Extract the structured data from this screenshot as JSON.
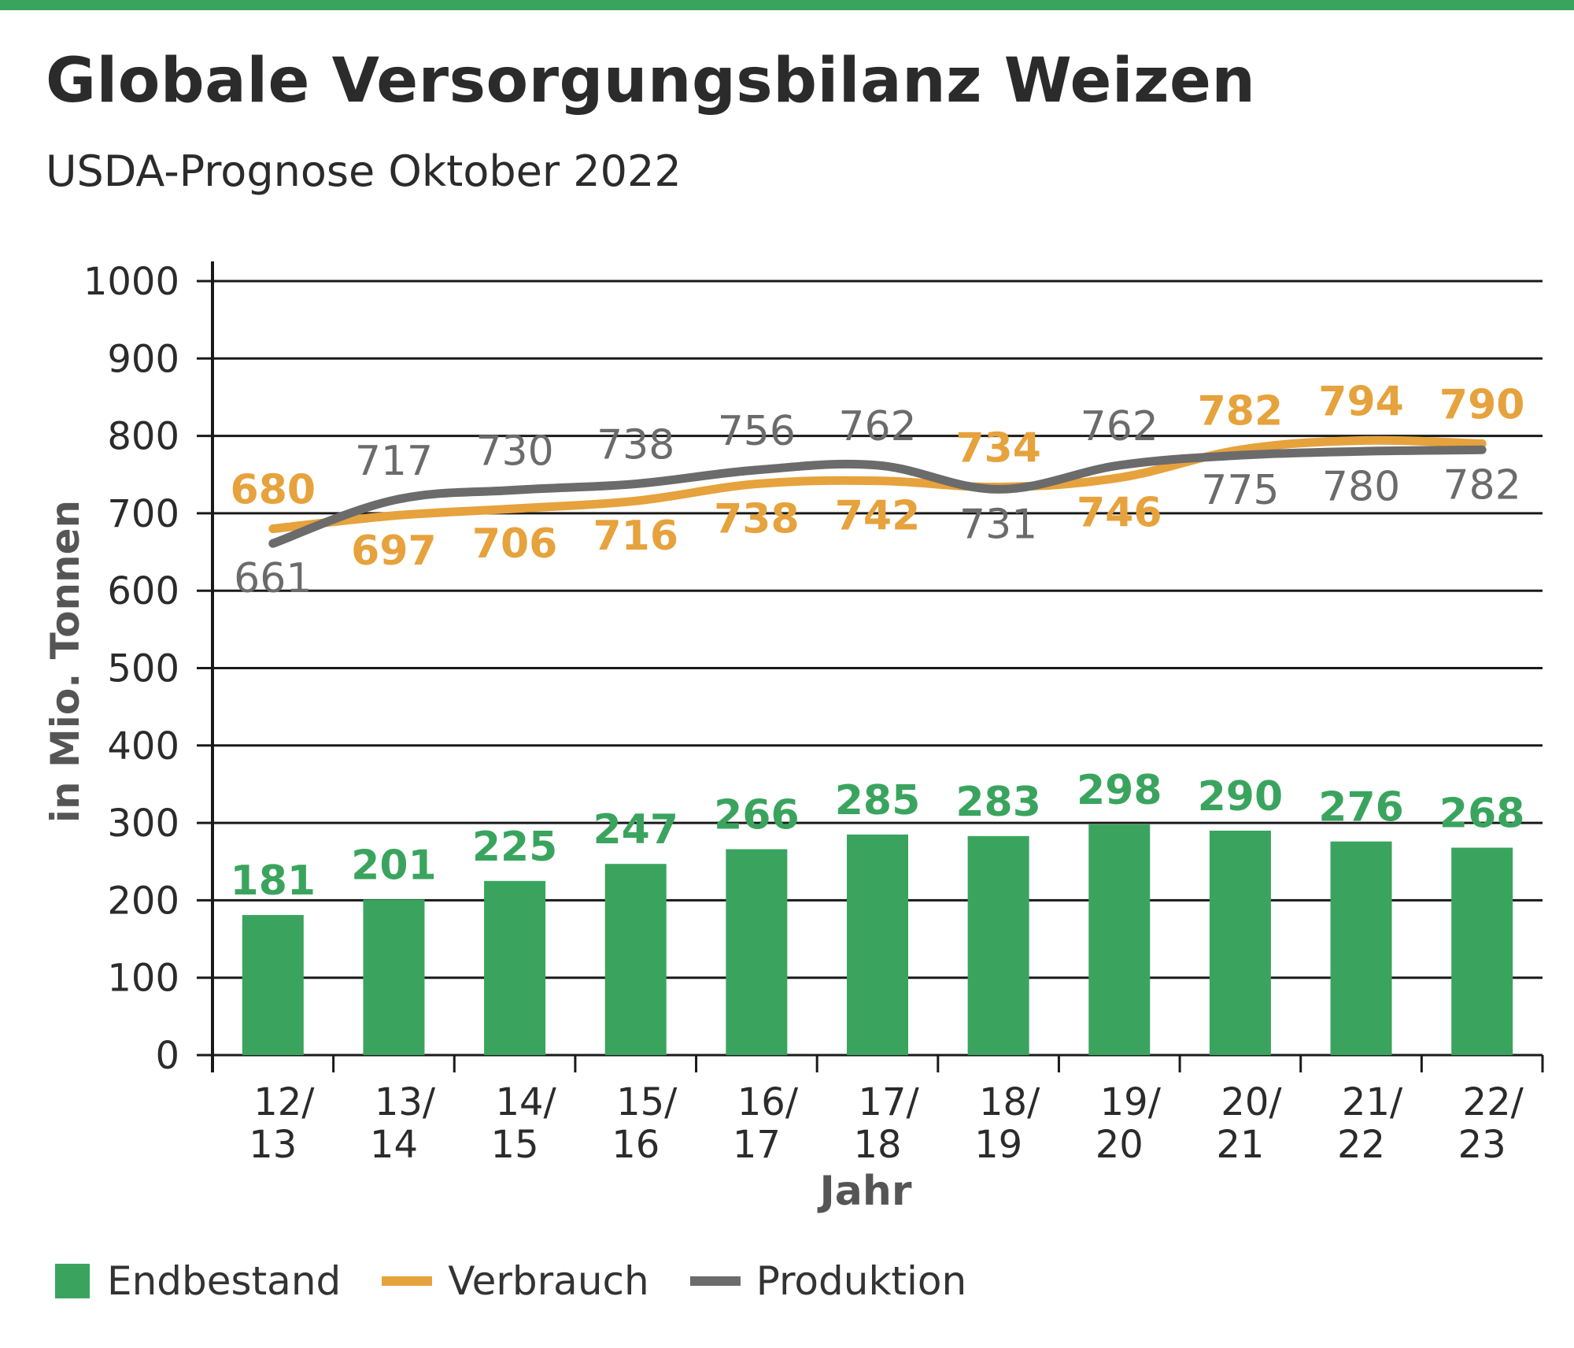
{
  "header": {
    "title": "Globale Versorgungsbilanz Weizen",
    "subtitle": "USDA-Prognose Oktober 2022"
  },
  "colors": {
    "accent_bar": "#3aa45e",
    "endbestand": "#3aa45e",
    "verbrauch": "#e6a23c",
    "produktion": "#6b6b6b",
    "grid": "#1a1a1a"
  },
  "legend": [
    {
      "label": "Endbestand",
      "symbol": "box",
      "color": "#3aa45e"
    },
    {
      "label": "Verbrauch",
      "symbol": "line",
      "color": "#e6a23c"
    },
    {
      "label": "Produktion",
      "symbol": "line",
      "color": "#6b6b6b"
    }
  ],
  "chart_data": {
    "type": "bar+line",
    "xlabel": "Jahr",
    "ylabel": "in Mio. Tonnen",
    "ylim": [
      0,
      1000
    ],
    "yticks": [
      "0",
      "100",
      "200",
      "300",
      "400",
      "500",
      "600",
      "700",
      "800",
      "900",
      "1000"
    ],
    "grid": true,
    "legend_position": "bottom",
    "categories": [
      [
        "12/",
        "13"
      ],
      [
        "13/",
        "14"
      ],
      [
        "14/",
        "15"
      ],
      [
        "15/",
        "16"
      ],
      [
        "16/",
        "17"
      ],
      [
        "17/",
        "18"
      ],
      [
        "18/",
        "19"
      ],
      [
        "19/",
        "20"
      ],
      [
        "20/",
        "21"
      ],
      [
        "21/",
        "22"
      ],
      [
        "22/",
        "23"
      ]
    ],
    "series": [
      {
        "name": "Endbestand",
        "type": "bar",
        "values": [
          181,
          201,
          225,
          247,
          266,
          285,
          283,
          298,
          290,
          276,
          268
        ]
      },
      {
        "name": "Verbrauch",
        "type": "line",
        "values": [
          680,
          697,
          706,
          716,
          738,
          742,
          734,
          746,
          782,
          794,
          790
        ]
      },
      {
        "name": "Produktion",
        "type": "line",
        "values": [
          661,
          717,
          730,
          738,
          756,
          762,
          731,
          762,
          775,
          780,
          782
        ]
      }
    ]
  }
}
